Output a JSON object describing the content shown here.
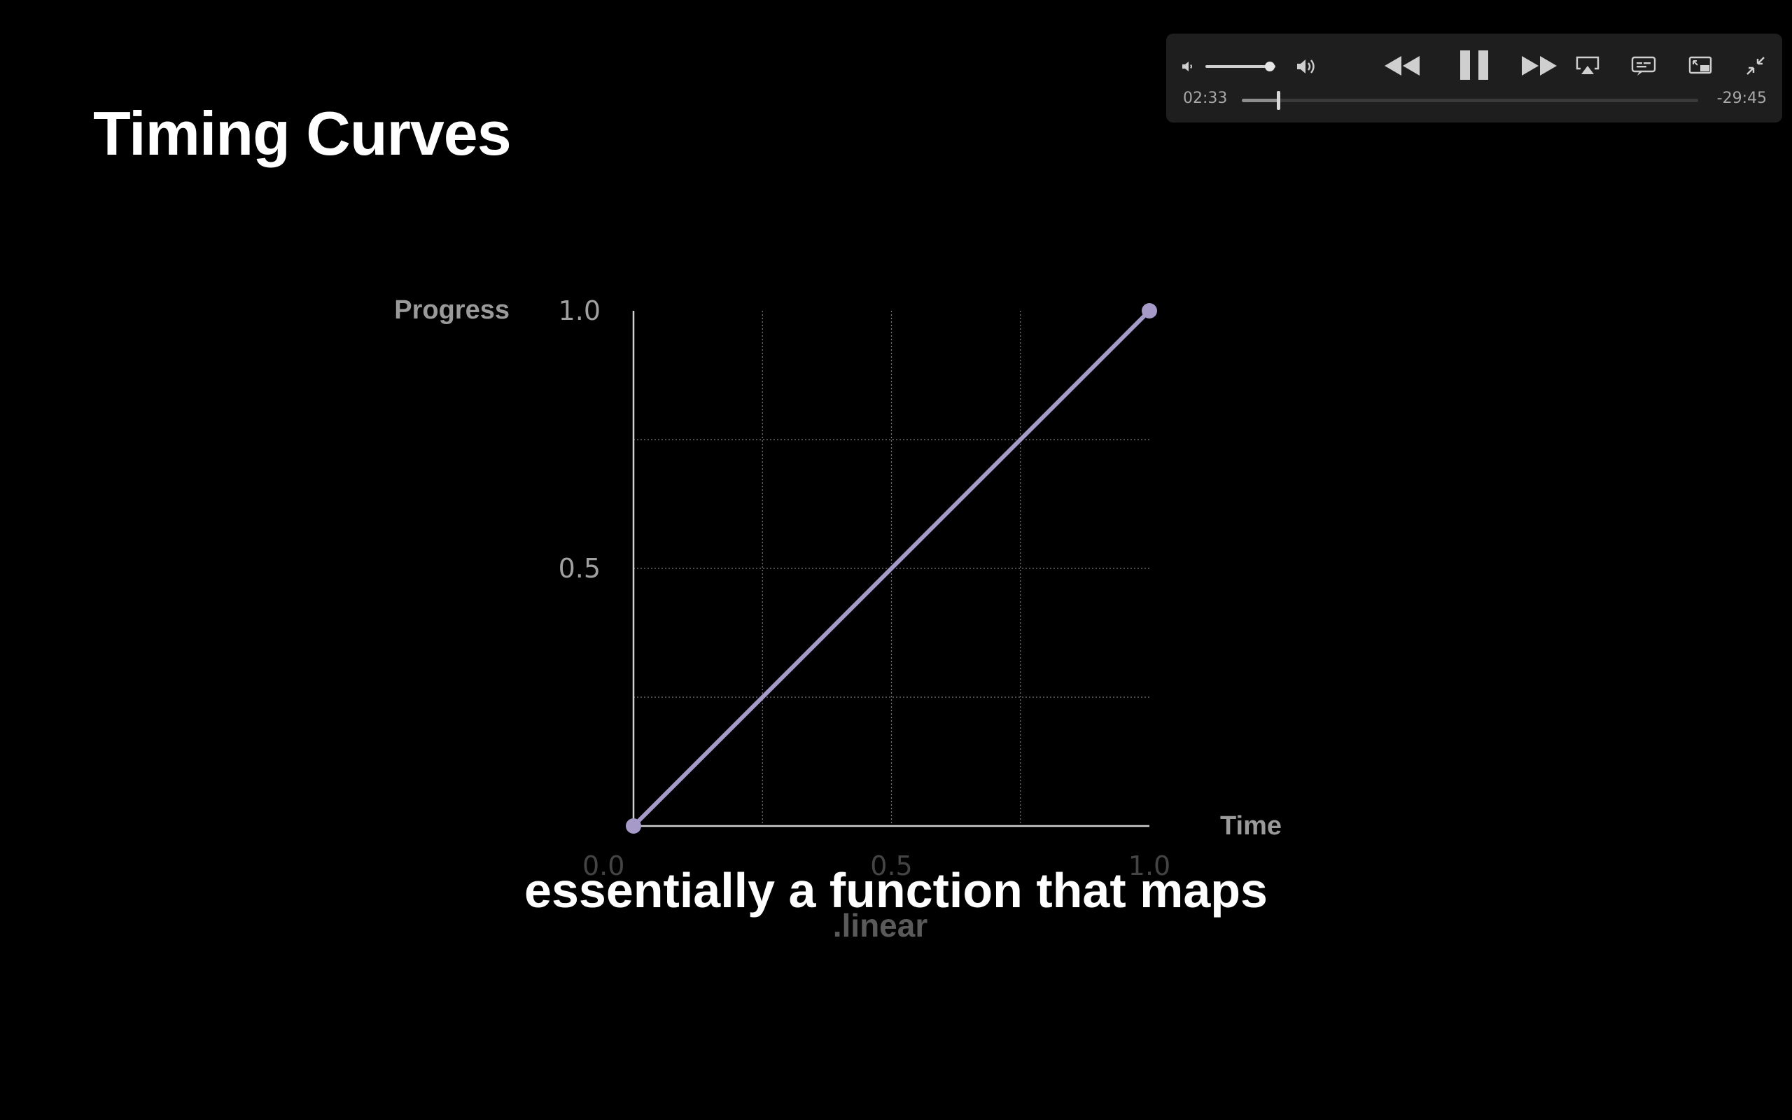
{
  "slide": {
    "title": "Timing Curves",
    "caption": "essentially a function that maps"
  },
  "chart_data": {
    "type": "line",
    "title": ".linear",
    "xlabel": "Time",
    "ylabel": "Progress",
    "xlim": [
      0,
      1
    ],
    "ylim": [
      0,
      1
    ],
    "x_ticks": [
      "0.0",
      "0.5",
      "1.0"
    ],
    "y_ticks": [
      "0.5",
      "1.0"
    ],
    "grid": true,
    "series": [
      {
        "x": [
          0,
          1
        ],
        "y": [
          0,
          1
        ],
        "color": "#a69bc8"
      }
    ]
  },
  "player": {
    "elapsed": "02:33",
    "remaining": "-29:45",
    "volume_level": 0.92,
    "playback_progress": 0.079,
    "icons": {
      "volume_low": "speaker-low-icon",
      "volume_high": "speaker-high-icon",
      "rewind": "rewind-icon",
      "pause": "pause-icon",
      "fast_forward": "fast-forward-icon",
      "airplay": "airplay-icon",
      "subtitles": "subtitles-icon",
      "pip": "picture-in-picture-icon",
      "exit_fullscreen": "exit-fullscreen-icon"
    }
  },
  "colors": {
    "background": "#000000",
    "curve": "#a69bc8",
    "axis_label": "#9a9a9a",
    "hud_background": "#1e1e1e"
  }
}
